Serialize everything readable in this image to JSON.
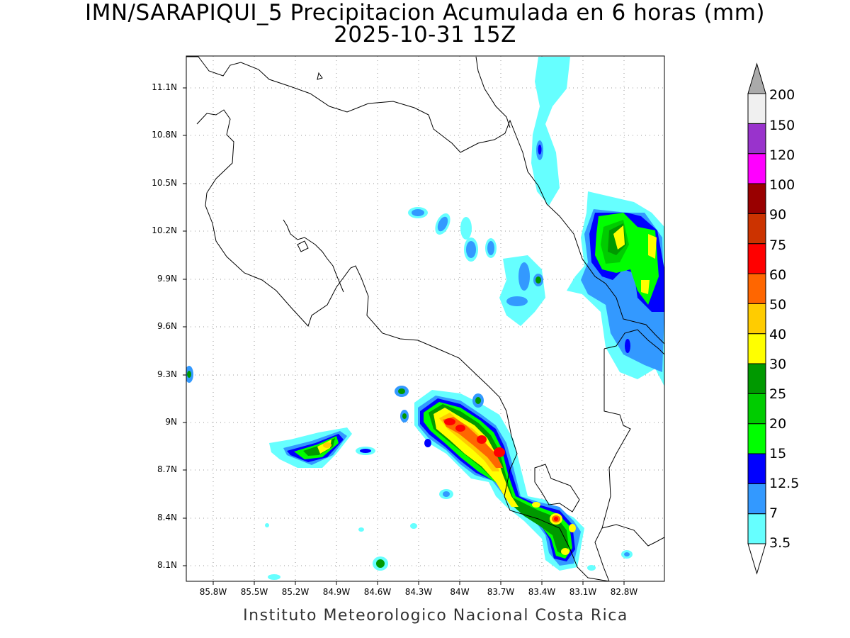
{
  "title": {
    "line1": "IMN/SARAPIQUI_5 Precipitacion Acumulada en 6 horas (mm)",
    "line2": "2025-10-31 15Z"
  },
  "map": {
    "lon_range": [
      -86.0,
      -82.6
    ],
    "lat_range": [
      8.0,
      11.3
    ],
    "y_ticks": [
      "11.1N",
      "10.8N",
      "10.5N",
      "10.2N",
      "9.9N",
      "9.6N",
      "9.3N",
      "9N",
      "8.7N",
      "8.4N",
      "8.1N"
    ],
    "x_ticks": [
      "85.8W",
      "85.5W",
      "85.2W",
      "84.9W",
      "84.6W",
      "84.3W",
      "84W",
      "83.7W",
      "83.4W",
      "83.1W",
      "82.8W"
    ],
    "grid": "dotted"
  },
  "colorbar": {
    "labels": [
      "3.5",
      "7",
      "12.5",
      "15",
      "20",
      "25",
      "30",
      "40",
      "50",
      "60",
      "75",
      "90",
      "100",
      "120",
      "150",
      "200"
    ],
    "colors": [
      "#66ffff",
      "#3399ff",
      "#0000ff",
      "#00ff00",
      "#00cc00",
      "#009900",
      "#ffff00",
      "#ffcc00",
      "#ff6600",
      "#ff0000",
      "#cc3300",
      "#990000",
      "#ff00ff",
      "#9933cc",
      "#f0f0f0",
      "#aaaaaa"
    ]
  },
  "footer": "Instituto Meteorologico Nacional Costa Rica"
}
